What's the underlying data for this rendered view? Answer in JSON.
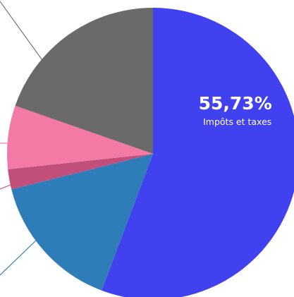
{
  "chart_data": {
    "type": "pie",
    "categories": [
      "Impôts et taxes",
      null,
      null,
      null,
      null
    ],
    "values": [
      55.73,
      15.36,
      2.22,
      7.03,
      19.66
    ],
    "value_labels": [
      "55,73%",
      null,
      null,
      null,
      null
    ],
    "colors": [
      "#4141f0",
      "#2f7db8",
      "#c24e7c",
      "#f47aa6",
      "#6a6a6a"
    ]
  }
}
